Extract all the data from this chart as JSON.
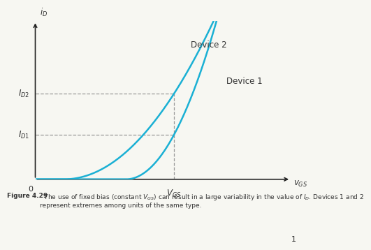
{
  "background_color": "#f7f7f2",
  "curve_color": "#1ab0d4",
  "dashed_color": "#999999",
  "axis_color": "#222222",
  "text_color": "#333333",
  "vgs_fixed": 0.58,
  "id2_level": 0.54,
  "id1_level": 0.28,
  "device1_label": "Device 1",
  "device2_label": "Device 2",
  "xlabel": "$v_{GS}$",
  "ylabel": "$i_D$",
  "vgs_label": "$V_{GS}$",
  "id1_label": "$I_{D1}$",
  "id2_label": "$I_{D2}$",
  "caption_bold": "Figure 4.29",
  "caption_normal": "  The use of fixed bias (constant $V_{GS}$) can result in a large variability in the value of $I_D$. Devices 1 and 2\nrepresent extremes among units of the same type.",
  "page_number": "1",
  "vt1": 0.38,
  "vt2": 0.12,
  "k1": 1.0,
  "k2": 2.8
}
